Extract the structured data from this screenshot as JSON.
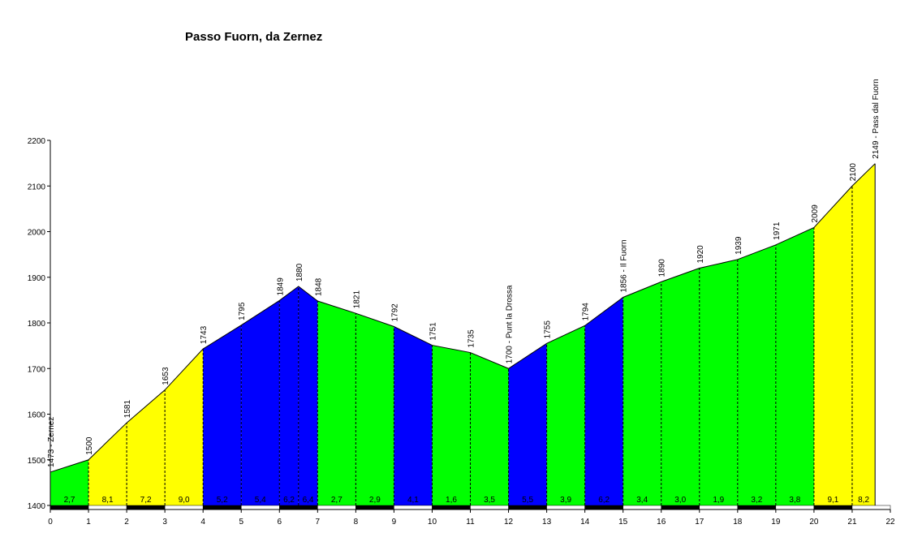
{
  "chart_data": {
    "type": "area",
    "title": "Passo Fuorn, da Zernez",
    "xlim": [
      0,
      22
    ],
    "ylim": [
      1400,
      2200
    ],
    "x_ticks": [
      0,
      1,
      2,
      3,
      4,
      5,
      6,
      7,
      8,
      9,
      10,
      11,
      12,
      13,
      14,
      15,
      16,
      17,
      18,
      19,
      20,
      21,
      22
    ],
    "y_ticks": [
      1400,
      1500,
      1600,
      1700,
      1800,
      1900,
      2000,
      2100,
      2200
    ],
    "points": [
      {
        "x": 0,
        "y": 1473,
        "label": "1473 - Zernez"
      },
      {
        "x": 1,
        "y": 1500,
        "label": "1500"
      },
      {
        "x": 2,
        "y": 1581,
        "label": "1581"
      },
      {
        "x": 3,
        "y": 1653,
        "label": "1653"
      },
      {
        "x": 4,
        "y": 1743,
        "label": "1743"
      },
      {
        "x": 5,
        "y": 1795,
        "label": "1795"
      },
      {
        "x": 6,
        "y": 1849,
        "label": "1849"
      },
      {
        "x": 6.5,
        "y": 1880,
        "label": "1880"
      },
      {
        "x": 7,
        "y": 1848,
        "label": "1848"
      },
      {
        "x": 8,
        "y": 1821,
        "label": "1821"
      },
      {
        "x": 9,
        "y": 1792,
        "label": "1792"
      },
      {
        "x": 10,
        "y": 1751,
        "label": "1751"
      },
      {
        "x": 11,
        "y": 1735,
        "label": "1735"
      },
      {
        "x": 12,
        "y": 1700,
        "label": "1700 - Punt la Drossa"
      },
      {
        "x": 13,
        "y": 1755,
        "label": "1755"
      },
      {
        "x": 14,
        "y": 1794,
        "label": "1794"
      },
      {
        "x": 15,
        "y": 1856,
        "label": "1856 - Il Fuorn"
      },
      {
        "x": 16,
        "y": 1890,
        "label": "1890"
      },
      {
        "x": 17,
        "y": 1920,
        "label": "1920"
      },
      {
        "x": 18,
        "y": 1939,
        "label": "1939"
      },
      {
        "x": 19,
        "y": 1971,
        "label": "1971"
      },
      {
        "x": 20,
        "y": 2009,
        "label": "2009"
      },
      {
        "x": 21,
        "y": 2100,
        "label": "2100"
      },
      {
        "x": 21.6,
        "y": 2149,
        "label": "2149 - Pass dal Fuorn"
      }
    ],
    "segments": [
      {
        "from": 0,
        "to": 1,
        "gradient": "2,7",
        "color": "#00ff00"
      },
      {
        "from": 1,
        "to": 2,
        "gradient": "8,1",
        "color": "#ffff00"
      },
      {
        "from": 2,
        "to": 3,
        "gradient": "7,2",
        "color": "#ffff00"
      },
      {
        "from": 3,
        "to": 4,
        "gradient": "9,0",
        "color": "#ffff00"
      },
      {
        "from": 4,
        "to": 5,
        "gradient": "5,2",
        "color": "#0000ff"
      },
      {
        "from": 5,
        "to": 6,
        "gradient": "5,4",
        "color": "#0000ff"
      },
      {
        "from": 6,
        "to": 6.5,
        "gradient": "6,2",
        "color": "#0000ff"
      },
      {
        "from": 6.5,
        "to": 7,
        "gradient": "6,4",
        "color": "#0000ff"
      },
      {
        "from": 7,
        "to": 8,
        "gradient": "2,7",
        "color": "#00ff00"
      },
      {
        "from": 8,
        "to": 9,
        "gradient": "2,9",
        "color": "#00ff00"
      },
      {
        "from": 9,
        "to": 10,
        "gradient": "4,1",
        "color": "#0000ff"
      },
      {
        "from": 10,
        "to": 11,
        "gradient": "1,6",
        "color": "#00ff00"
      },
      {
        "from": 11,
        "to": 12,
        "gradient": "3,5",
        "color": "#00ff00"
      },
      {
        "from": 12,
        "to": 13,
        "gradient": "5,5",
        "color": "#0000ff"
      },
      {
        "from": 13,
        "to": 14,
        "gradient": "3,9",
        "color": "#00ff00"
      },
      {
        "from": 14,
        "to": 15,
        "gradient": "6,2",
        "color": "#0000ff"
      },
      {
        "from": 15,
        "to": 16,
        "gradient": "3,4",
        "color": "#00ff00"
      },
      {
        "from": 16,
        "to": 17,
        "gradient": "3,0",
        "color": "#00ff00"
      },
      {
        "from": 17,
        "to": 18,
        "gradient": "1,9",
        "color": "#00ff00"
      },
      {
        "from": 18,
        "to": 19,
        "gradient": "3,2",
        "color": "#00ff00"
      },
      {
        "from": 19,
        "to": 20,
        "gradient": "3,8",
        "color": "#00ff00"
      },
      {
        "from": 20,
        "to": 21,
        "gradient": "9,1",
        "color": "#ffff00"
      },
      {
        "from": 21,
        "to": 21.6,
        "gradient": "8,2",
        "color": "#ffff00"
      }
    ],
    "grid": false,
    "legend": "none"
  }
}
